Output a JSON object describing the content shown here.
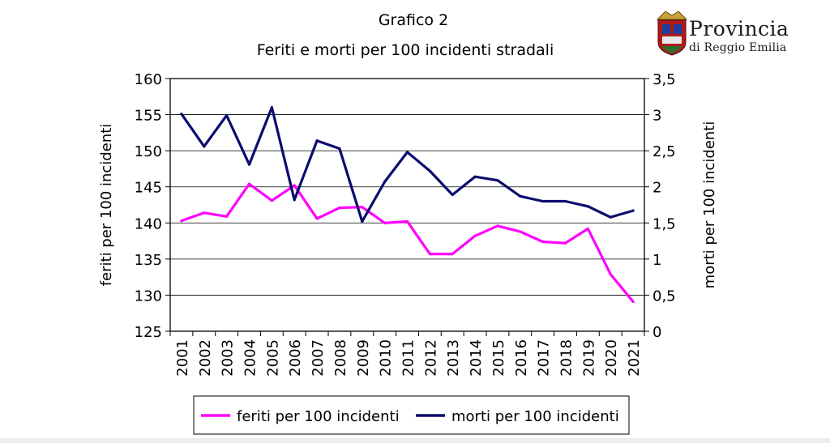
{
  "logo": {
    "line1": "Provincia",
    "line2": "di Reggio Emilia"
  },
  "chart_data": {
    "type": "line",
    "title": "Grafico 2",
    "subtitle": "Feriti e morti per 100 incidenti stradali",
    "categories": [
      "2001",
      "2002",
      "2003",
      "2004",
      "2005",
      "2006",
      "2007",
      "2008",
      "2009",
      "2010",
      "2011",
      "2012",
      "2013",
      "2014",
      "2015",
      "2016",
      "2017",
      "2018",
      "2019",
      "2020",
      "2021"
    ],
    "ylabel_left": "feriti per 100 incidenti",
    "ylabel_right": "morti per 100 incidenti",
    "ylim_left": [
      125,
      160
    ],
    "ylim_right": [
      0,
      3.5
    ],
    "yticks_left": [
      "125",
      "130",
      "135",
      "140",
      "145",
      "150",
      "155",
      "160"
    ],
    "yticks_right": [
      "0",
      "0,5",
      "1",
      "1,5",
      "2",
      "2,5",
      "3",
      "3,5"
    ],
    "grid": true,
    "legend_position": "bottom",
    "series": [
      {
        "name": "feriti per 100 incidenti",
        "axis": "left",
        "color": "#ff00ff",
        "values": [
          140.3,
          141.4,
          140.9,
          145.4,
          143.1,
          145.2,
          140.6,
          142.1,
          142.2,
          140.0,
          140.2,
          135.7,
          135.7,
          138.2,
          139.6,
          138.8,
          137.4,
          137.2,
          139.2,
          132.9,
          129.1
        ]
      },
      {
        "name": "morti per 100 incidenti",
        "axis": "right",
        "color": "#0c0c6e",
        "values": [
          3.01,
          2.56,
          2.99,
          2.31,
          3.1,
          1.82,
          2.64,
          2.53,
          1.52,
          2.07,
          2.48,
          2.22,
          1.89,
          2.14,
          2.09,
          1.87,
          1.8,
          1.8,
          1.73,
          1.58,
          1.67
        ]
      }
    ]
  }
}
